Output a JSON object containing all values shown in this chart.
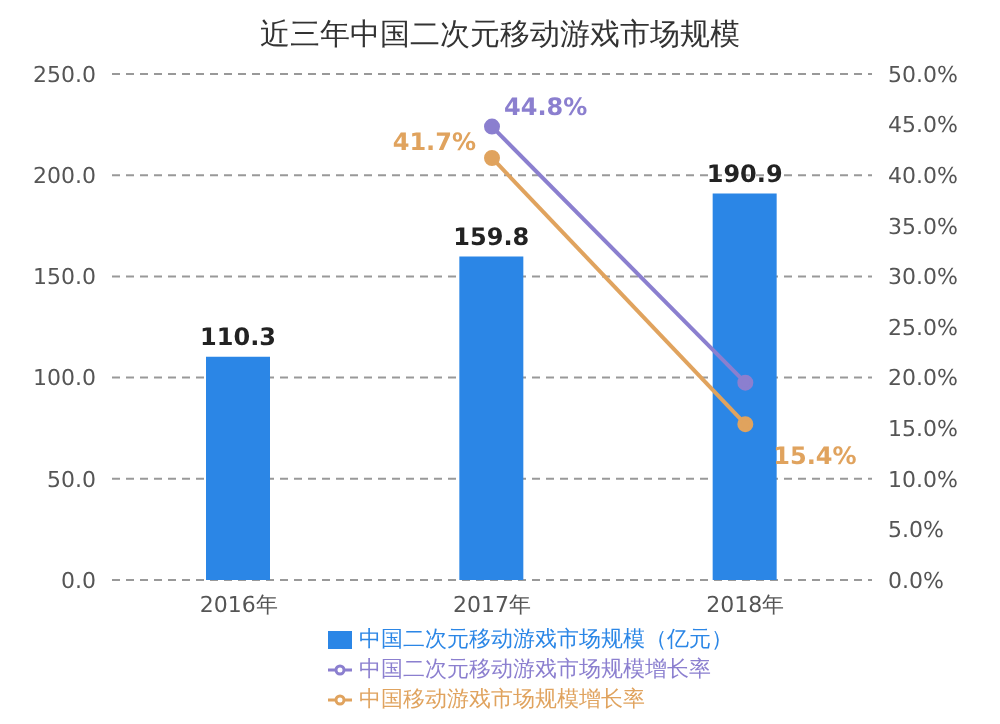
{
  "chart_data": {
    "type": "bar",
    "title": "近三年中国二次元移动游戏市场规模",
    "categories": [
      "2016年",
      "2017年",
      "2018年"
    ],
    "series": [
      {
        "name": "中国二次元移动游戏市场规模（亿元）",
        "color": "#2b86e6",
        "values": [
          110.3,
          159.8,
          190.9
        ],
        "value_labels": [
          "110.3",
          "159.8",
          "190.9"
        ]
      },
      {
        "name": "中国二次元移动游戏市场规模增长率",
        "type": "line",
        "axis": "y2",
        "color": "#8b7fcf",
        "values": [
          null,
          44.8,
          19.5
        ],
        "value_labels": [
          null,
          "44.8%",
          null
        ]
      },
      {
        "name": "中国移动游戏市场规模增长率",
        "type": "line",
        "axis": "y2",
        "color": "#e0a35e",
        "values": [
          null,
          41.7,
          15.4
        ],
        "value_labels": [
          null,
          "41.7%",
          "15.4%"
        ]
      }
    ],
    "ylim": [
      0,
      250
    ],
    "yticks": [
      {
        "value": 0,
        "label": "0.0"
      },
      {
        "value": 50,
        "label": "50.0"
      },
      {
        "value": 100,
        "label": "100.0"
      },
      {
        "value": 150,
        "label": "150.0"
      },
      {
        "value": 200,
        "label": "200.0"
      },
      {
        "value": 250,
        "label": "250.0"
      }
    ],
    "y2lim": [
      0,
      50
    ],
    "y2ticks": [
      {
        "value": 0,
        "label": "0.0%"
      },
      {
        "value": 5,
        "label": "5.0%"
      },
      {
        "value": 10,
        "label": "10.0%"
      },
      {
        "value": 15,
        "label": "15.0%"
      },
      {
        "value": 20,
        "label": "20.0%"
      },
      {
        "value": 25,
        "label": "25.0%"
      },
      {
        "value": 30,
        "label": "30.0%"
      },
      {
        "value": 35,
        "label": "35.0%"
      },
      {
        "value": 40,
        "label": "40.0%"
      },
      {
        "value": 45,
        "label": "45.0%"
      },
      {
        "value": 50,
        "label": "50.0%"
      }
    ],
    "grid": "y",
    "legend": "bottom",
    "marker": "circle"
  }
}
